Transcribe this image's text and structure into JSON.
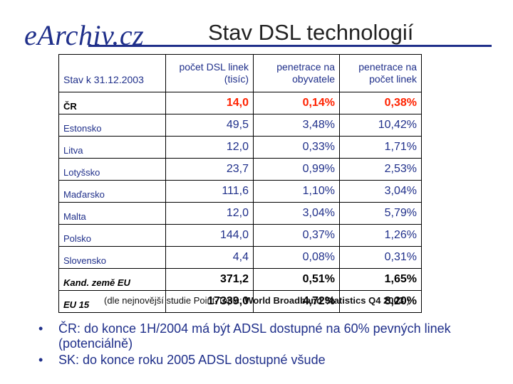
{
  "header": {
    "logo": "eArchiv.cz",
    "title": "Stav DSL technologií"
  },
  "table": {
    "columns": [
      "Stav k 31.12.2003",
      "počet DSL linek (tisíc)",
      "penetrace na obyvatele",
      "penetrace na počet linek"
    ],
    "rows": [
      {
        "name": "ČR",
        "lines": "14,0",
        "pop": "0,14%",
        "per_line": "0,38%"
      },
      {
        "name": "Estonsko",
        "lines": "49,5",
        "pop": "3,48%",
        "per_line": "10,42%"
      },
      {
        "name": "Litva",
        "lines": "12,0",
        "pop": "0,33%",
        "per_line": "1,71%"
      },
      {
        "name": "Lotyšsko",
        "lines": "23,7",
        "pop": "0,99%",
        "per_line": "2,53%"
      },
      {
        "name": "Maďarsko",
        "lines": "111,6",
        "pop": "1,10%",
        "per_line": "3,04%"
      },
      {
        "name": "Malta",
        "lines": "12,0",
        "pop": "3,04%",
        "per_line": "5,79%"
      },
      {
        "name": "Polsko",
        "lines": "144,0",
        "pop": "0,37%",
        "per_line": "1,26%"
      },
      {
        "name": "Slovensko",
        "lines": "4,4",
        "pop": "0,08%",
        "per_line": "0,31%"
      },
      {
        "name": "Kand. země EU",
        "lines": "371,2",
        "pop": "0,51%",
        "per_line": "1,65%"
      },
      {
        "name": "EU 15",
        "lines": "17339,0",
        "pop": "4,72%",
        "per_line": "8,20%"
      }
    ]
  },
  "source": {
    "prefix": "(dle nejnovější studie Point-Topic: ",
    "bold": "World Broadband Statistics Q4 2003",
    "suffix": " )"
  },
  "bullets": [
    "ČR: do konce 1H/2004 má být ADSL dostupné na 60% pevných linek (potenciálně)",
    "SK: do konce roku 2005 ADSL dostupné všude"
  ],
  "bullet_symbol": "•"
}
